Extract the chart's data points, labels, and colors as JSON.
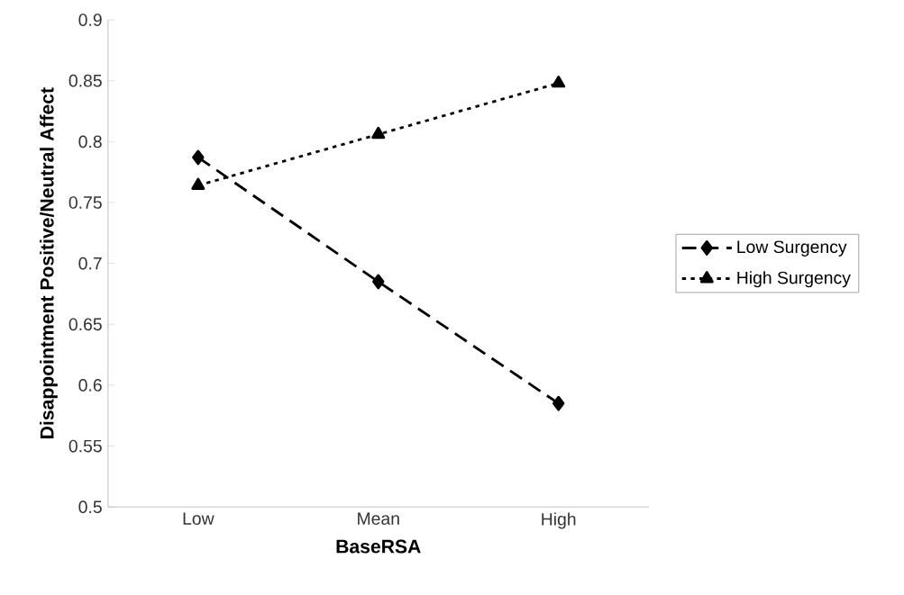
{
  "chart_data": {
    "type": "line",
    "xlabel": "BaseRSA",
    "ylabel": "Disappointment Positive/Neutral Affect",
    "categories": [
      "Low",
      "Mean",
      "High"
    ],
    "series": [
      {
        "name": "Low Surgency",
        "color": "#000000",
        "values": [
          0.787,
          0.685,
          0.585
        ],
        "marker": "diamond",
        "line_style": "dashed"
      },
      {
        "name": "High Surgency",
        "color": "#000000",
        "values": [
          0.764,
          0.806,
          0.848
        ],
        "marker": "triangle",
        "line_style": "dotted"
      }
    ],
    "ylim": [
      0.5,
      0.9
    ],
    "yticks": [
      0.5,
      0.55,
      0.6,
      0.65,
      0.7,
      0.75,
      0.8,
      0.85,
      0.9
    ],
    "grid": false,
    "legend": "right"
  }
}
